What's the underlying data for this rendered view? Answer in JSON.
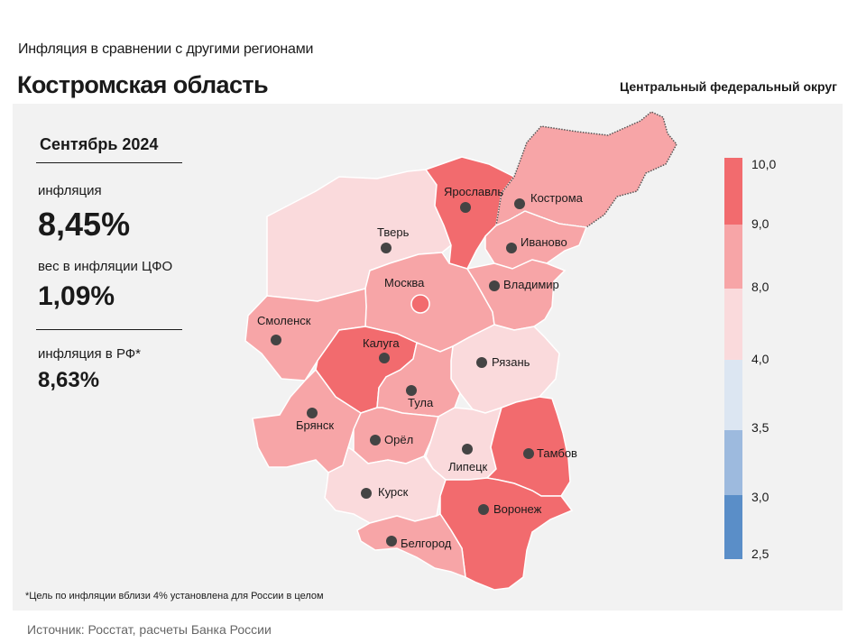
{
  "header": {
    "subtitle": "Инфляция в сравнении с другими регионами",
    "title": "Костромская область",
    "district": "Центральный федеральный округ"
  },
  "stats": {
    "period": "Сентябрь 2024",
    "inflation_label": "инфляция",
    "inflation_value": "8,45%",
    "weight_label": "вес в инфляции ЦФО",
    "weight_value": "1,09%",
    "rf_label": "инфляция в РФ*",
    "rf_value": "8,63%"
  },
  "legend": {
    "labels": [
      "10,0",
      "9,0",
      "8,0",
      "4,0",
      "3,5",
      "3,0",
      "2,5"
    ],
    "colors": [
      "#f26b6e",
      "#f7a5a7",
      "#fadadc",
      "#dce6f2",
      "#9dbade",
      "#5a8ec8"
    ]
  },
  "regions": [
    {
      "name": "Ярославль"
    },
    {
      "name": "Кострома"
    },
    {
      "name": "Тверь"
    },
    {
      "name": "Иваново"
    },
    {
      "name": "Москва"
    },
    {
      "name": "Владимир"
    },
    {
      "name": "Смоленск"
    },
    {
      "name": "Калуга"
    },
    {
      "name": "Рязань"
    },
    {
      "name": "Тула"
    },
    {
      "name": "Брянск"
    },
    {
      "name": "Орёл"
    },
    {
      "name": "Липецк"
    },
    {
      "name": "Тамбов"
    },
    {
      "name": "Курск"
    },
    {
      "name": "Воронеж"
    },
    {
      "name": "Белгород"
    }
  ],
  "footnote": "*Цель по инфляции вблизи 4% установлена для России в целом",
  "source": "Источник: Росстат, расчеты Банка России"
}
